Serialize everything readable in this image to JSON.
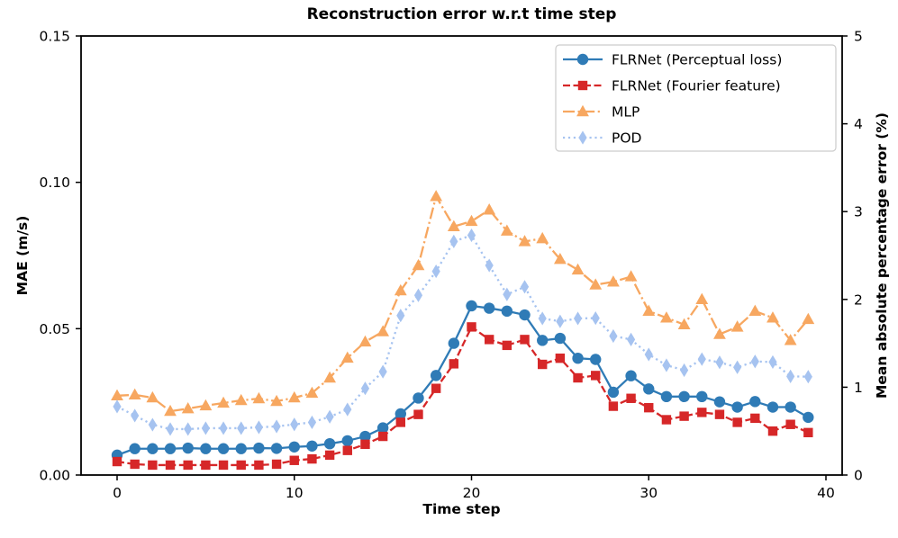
{
  "chart_data": {
    "type": "line",
    "title": "Reconstruction error w.r.t time step",
    "xlabel": "Time step",
    "ylabel_left": "MAE (m/s)",
    "ylabel_right": "Mean absolute percentage error (%)",
    "x_ticks": [
      0,
      10,
      20,
      30,
      40
    ],
    "y_ticks_left": [
      "0.00",
      "0.05",
      "0.10",
      "0.15"
    ],
    "y_ticks_right": [
      "0",
      "1",
      "2",
      "3",
      "4",
      "5"
    ],
    "ylim_left": [
      0,
      0.15
    ],
    "ylim_right": [
      0,
      5
    ],
    "grid": false,
    "legend_position": "upper right",
    "x": [
      0,
      1,
      2,
      3,
      4,
      5,
      6,
      7,
      8,
      9,
      10,
      11,
      12,
      13,
      14,
      15,
      16,
      17,
      18,
      19,
      20,
      21,
      22,
      23,
      24,
      25,
      26,
      27,
      28,
      29,
      30,
      31,
      32,
      33,
      34,
      35,
      36,
      37,
      38,
      39
    ],
    "series": [
      {
        "name": "FLRNet (Perceptual loss)",
        "color": "#2f7bb6",
        "linestyle": "solid",
        "marker": "circle",
        "values": [
          0.0068,
          0.009,
          0.009,
          0.009,
          0.0092,
          0.009,
          0.009,
          0.009,
          0.0092,
          0.0091,
          0.0096,
          0.0099,
          0.0107,
          0.0117,
          0.0132,
          0.0161,
          0.0209,
          0.0263,
          0.034,
          0.045,
          0.0578,
          0.057,
          0.056,
          0.0547,
          0.046,
          0.0467,
          0.0399,
          0.0395,
          0.0283,
          0.0339,
          0.0294,
          0.0268,
          0.0268,
          0.0268,
          0.025,
          0.0232,
          0.0251,
          0.0232,
          0.0232,
          0.0197
        ]
      },
      {
        "name": "FLRNet (Fourier feature)",
        "color": "#d62728",
        "linestyle": "dashed",
        "marker": "square",
        "values": [
          0.0046,
          0.0037,
          0.0034,
          0.0034,
          0.0034,
          0.0034,
          0.0034,
          0.0034,
          0.0034,
          0.0037,
          0.005,
          0.0055,
          0.0068,
          0.0084,
          0.0105,
          0.0132,
          0.018,
          0.0207,
          0.0296,
          0.038,
          0.0506,
          0.0463,
          0.0443,
          0.0463,
          0.0378,
          0.0399,
          0.0332,
          0.034,
          0.0235,
          0.0262,
          0.023,
          0.0189,
          0.0201,
          0.0214,
          0.0207,
          0.018,
          0.0194,
          0.015,
          0.0173,
          0.0145
        ]
      },
      {
        "name": "MLP",
        "color": "#f7a760",
        "linestyle": "dashdot",
        "marker": "triangle",
        "values": [
          0.0271,
          0.0274,
          0.0264,
          0.0218,
          0.0227,
          0.0237,
          0.0246,
          0.0255,
          0.0261,
          0.0252,
          0.0264,
          0.028,
          0.0332,
          0.04,
          0.0455,
          0.049,
          0.063,
          0.0716,
          0.0952,
          0.0849,
          0.0867,
          0.0906,
          0.0834,
          0.0798,
          0.0808,
          0.0737,
          0.0701,
          0.065,
          0.066,
          0.0678,
          0.056,
          0.0537,
          0.0514,
          0.06,
          0.0481,
          0.0506,
          0.056,
          0.0537,
          0.046,
          0.0532
        ]
      },
      {
        "name": "POD",
        "color": "#a6c3f0",
        "linestyle": "dotted",
        "marker": "thin_diamond",
        "values": [
          0.0234,
          0.0203,
          0.0172,
          0.0157,
          0.0157,
          0.016,
          0.016,
          0.016,
          0.0163,
          0.0166,
          0.0173,
          0.018,
          0.0199,
          0.0224,
          0.0296,
          0.0353,
          0.0545,
          0.0614,
          0.0696,
          0.0798,
          0.0819,
          0.0716,
          0.0617,
          0.0643,
          0.0535,
          0.0525,
          0.0535,
          0.0536,
          0.0475,
          0.0463,
          0.0412,
          0.0375,
          0.0358,
          0.0396,
          0.0385,
          0.0368,
          0.0388,
          0.0386,
          0.0337,
          0.0336
        ]
      }
    ],
    "axis_color": "#000000",
    "legend_border_color": "#cccccc",
    "background_color": "#ffffff"
  }
}
